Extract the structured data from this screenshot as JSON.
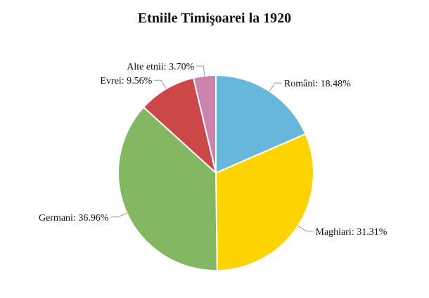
{
  "chart_data": {
    "type": "pie",
    "title": "Etniile Timişoarei la 1920",
    "series": [
      {
        "name": "Români",
        "value": 18.48,
        "label": "Români: 18.48%",
        "color": "#67b6dc"
      },
      {
        "name": "Maghiari",
        "value": 31.31,
        "label": "Maghiari: 31.31%",
        "color": "#fdd400"
      },
      {
        "name": "Germani",
        "value": 36.96,
        "label": "Germani: 36.96%",
        "color": "#84b761"
      },
      {
        "name": "Evrei",
        "value": 9.56,
        "label": "Evrei: 9.56%",
        "color": "#cc4748"
      },
      {
        "name": "Alte etnii",
        "value": 3.7,
        "label": "Alte etnii: 3.70%",
        "color": "#cd82ad"
      }
    ],
    "start_angle": "top",
    "direction": "clockwise",
    "legend": "none"
  }
}
